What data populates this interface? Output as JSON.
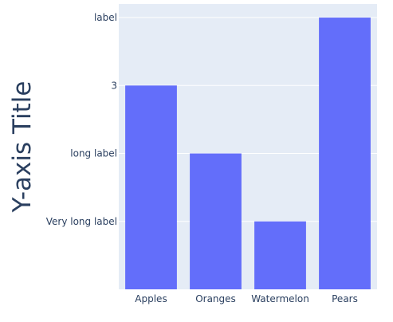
{
  "chart_data": {
    "type": "bar",
    "categories": [
      "Apples",
      "Oranges",
      "Watermelon",
      "Pears"
    ],
    "values": [
      3,
      2,
      1,
      4
    ],
    "ylabel": "Y-axis Title",
    "yticks": [
      {
        "value": 1,
        "label": "Very long label"
      },
      {
        "value": 2,
        "label": "long label"
      },
      {
        "value": 3,
        "label": "3"
      },
      {
        "value": 4,
        "label": "label"
      }
    ],
    "ylim": [
      0,
      4.2
    ],
    "grid": true,
    "colors": {
      "bar": "#636efa",
      "plot_bg": "#e5ecf6",
      "grid": "#ffffff",
      "text": "#2a3f5f"
    }
  }
}
